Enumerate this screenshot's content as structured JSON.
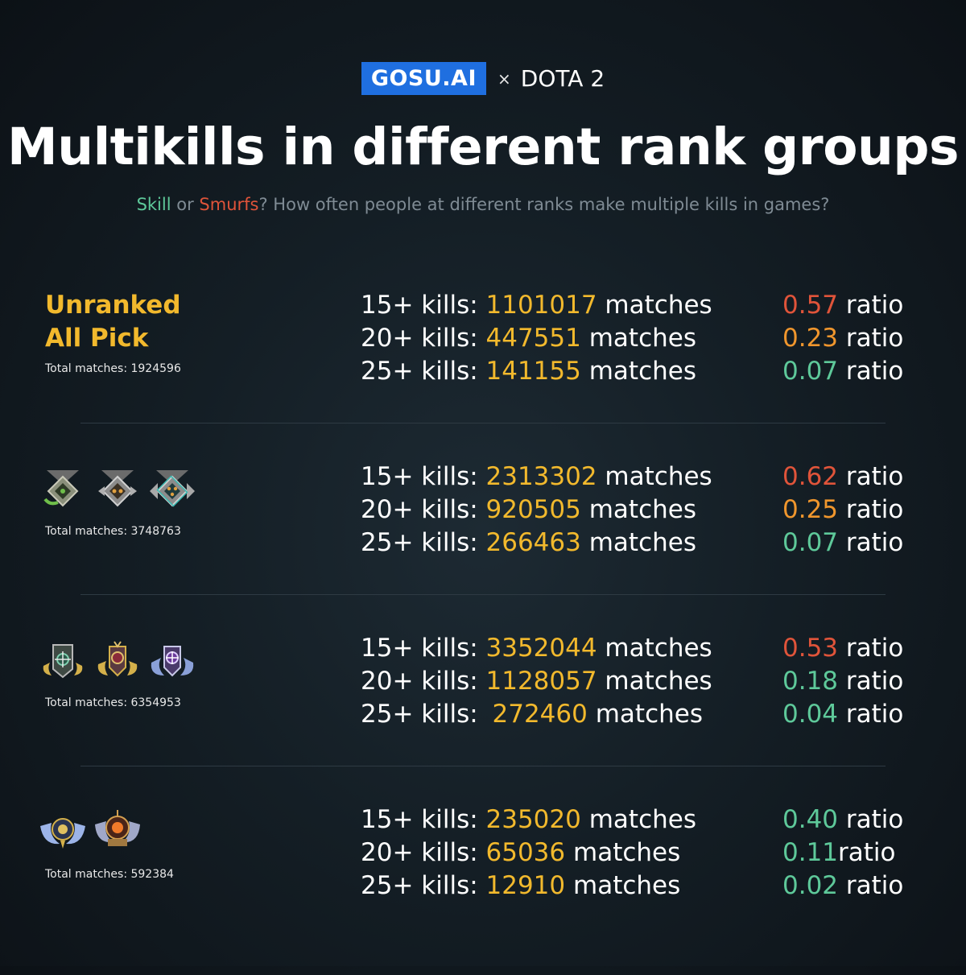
{
  "header": {
    "brand": "GOSU.AI",
    "separator": "×",
    "game": "DOTA 2",
    "title": "Multikills in different rank groups",
    "subtitle": {
      "skill": "Skill",
      "or": " or ",
      "smurfs": "Smurfs",
      "rest": "? How often people at different ranks make multiple kills in games?"
    }
  },
  "colors": {
    "accent_yellow": "#f2b92d",
    "high_ratio": "#e0543a",
    "mid_ratio": "#f0962d",
    "low_ratio": "#5ec99a",
    "brand_blue": "#1f6fe0"
  },
  "groups": [
    {
      "name_line1": "Unranked",
      "name_line2": "All Pick",
      "total": "Total matches: 1924596",
      "rows": [
        {
          "label": "15+ kills: ",
          "count": "1101017",
          "suffix": " matches",
          "ratio": "0.57",
          "ratio_label": " ratio"
        },
        {
          "label": "20+ kills: ",
          "count": "447551",
          "suffix": " matches",
          "ratio": "0.23",
          "ratio_label": " ratio"
        },
        {
          "label": "25+ kills: ",
          "count": "141155",
          "suffix": " matches",
          "ratio": "0.07",
          "ratio_label": " ratio"
        }
      ]
    },
    {
      "total": "Total matches: 3748763",
      "badges": [
        "herald-medal-icon",
        "guardian-medal-icon",
        "crusader-medal-icon"
      ],
      "rows": [
        {
          "label": "15+ kills: ",
          "count": "2313302",
          "suffix": " matches",
          "ratio": "0.62",
          "ratio_label": " ratio"
        },
        {
          "label": "20+ kills: ",
          "count": "920505",
          "suffix": " matches",
          "ratio": "0.25",
          "ratio_label": " ratio"
        },
        {
          "label": "25+ kills: ",
          "count": "266463",
          "suffix": " matches",
          "ratio": "0.07",
          "ratio_label": " ratio"
        }
      ]
    },
    {
      "total": "Total matches:  6354953",
      "badges": [
        "archon-medal-icon",
        "legend-medal-icon",
        "ancient-medal-icon"
      ],
      "rows": [
        {
          "label": "15+ kills: ",
          "count": "3352044",
          "suffix": " matches",
          "ratio": "0.53",
          "ratio_label": " ratio"
        },
        {
          "label": "20+ kills: ",
          "count": "1128057",
          "suffix": " matches",
          "ratio": "0.18",
          "ratio_label": " ratio"
        },
        {
          "label": "25+ kills: ",
          "count": "272460",
          "suffix": " matches",
          "ratio": "0.04",
          "ratio_label": " ratio"
        }
      ]
    },
    {
      "total": "Total matches:  592384",
      "badges": [
        "divine-medal-icon",
        "immortal-medal-icon"
      ],
      "rows": [
        {
          "label": "15+ kills: ",
          "count": "235020",
          "suffix": " matches",
          "ratio": "0.40",
          "ratio_label": " ratio"
        },
        {
          "label": "20+ kills: ",
          "count": "65036",
          "suffix": " matches",
          "ratio": "0.11",
          "ratio_label": "ratio"
        },
        {
          "label": "25+ kills: ",
          "count": "12910",
          "suffix": " matches",
          "ratio": "0.02",
          "ratio_label": " ratio"
        }
      ]
    }
  ]
}
